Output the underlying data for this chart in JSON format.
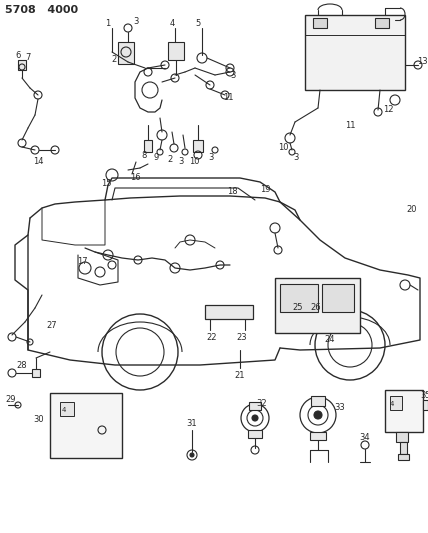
{
  "title": "5708  4000",
  "bg_color": "#ffffff",
  "fg_color": "#2a2a2a",
  "figsize": [
    4.28,
    5.33
  ],
  "dpi": 100
}
